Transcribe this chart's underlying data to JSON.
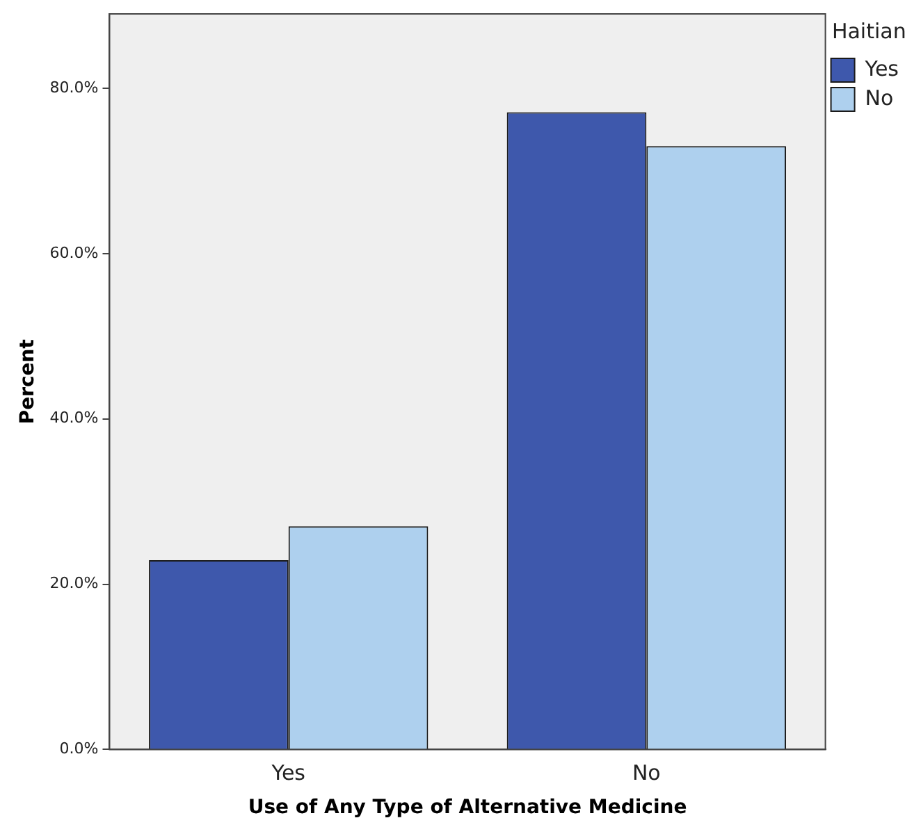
{
  "chart_data": {
    "type": "bar",
    "xlabel": "Use of Any Type of Alternative Medicine",
    "ylabel": "Percent",
    "legend_title": "Haitian",
    "legend": "top right",
    "grid": false,
    "categories": [
      "Yes",
      "No"
    ],
    "series": [
      {
        "name": "Yes",
        "color": "#3e58ac",
        "values": [
          22.9,
          77.1
        ]
      },
      {
        "name": "No",
        "color": "#aed0ee",
        "values": [
          27.0,
          73.0
        ]
      }
    ],
    "ylim": [
      0,
      89
    ],
    "yticks": [
      {
        "value": 0,
        "label": "0.0%"
      },
      {
        "value": 20,
        "label": "20.0%"
      },
      {
        "value": 40,
        "label": "40.0%"
      },
      {
        "value": 60,
        "label": "60.0%"
      },
      {
        "value": 80,
        "label": "80.0%"
      }
    ]
  }
}
